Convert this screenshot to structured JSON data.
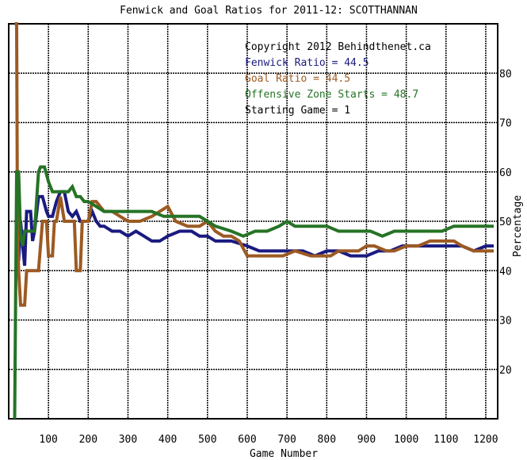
{
  "chart_data": {
    "type": "line",
    "title": "Fenwick and Goal Ratios for 2011-12: SCOTTHANNAN",
    "xlabel": "Game Number",
    "ylabel": "Percentage",
    "xlim": [
      0,
      1230
    ],
    "ylim": [
      10,
      90
    ],
    "x_ticks": [
      "100",
      "200",
      "300",
      "400",
      "500",
      "600",
      "700",
      "800",
      "900",
      "1000",
      "1100",
      "1200"
    ],
    "y_ticks": [
      "20",
      "30",
      "40",
      "50",
      "60",
      "70",
      "80"
    ],
    "grid": true,
    "annotations": [
      {
        "text": "Copyright 2012 Behindthenet.ca",
        "color": "#000000"
      },
      {
        "text": "Fenwick Ratio = 44.5",
        "color": "#1a1a80"
      },
      {
        "text": "Goal Ratio = 44.5",
        "color": "#9c5a22"
      },
      {
        "text": "Offensive Zone Starts = 48.7",
        "color": "#267326"
      },
      {
        "text": "Starting Game = 1",
        "color": "#000000"
      }
    ],
    "series": [
      {
        "name": "Fenwick Ratio",
        "color": "#1a1a80",
        "points": [
          [
            25,
            42
          ],
          [
            30,
            50
          ],
          [
            35,
            45
          ],
          [
            40,
            41
          ],
          [
            45,
            52
          ],
          [
            55,
            52
          ],
          [
            60,
            46
          ],
          [
            65,
            48
          ],
          [
            75,
            55
          ],
          [
            85,
            55
          ],
          [
            95,
            52
          ],
          [
            100,
            51
          ],
          [
            110,
            51
          ],
          [
            120,
            54
          ],
          [
            130,
            56
          ],
          [
            140,
            56
          ],
          [
            150,
            52
          ],
          [
            160,
            51
          ],
          [
            170,
            52
          ],
          [
            180,
            50
          ],
          [
            190,
            50
          ],
          [
            200,
            50
          ],
          [
            210,
            52
          ],
          [
            220,
            50
          ],
          [
            230,
            49
          ],
          [
            240,
            49
          ],
          [
            260,
            48
          ],
          [
            280,
            48
          ],
          [
            300,
            47
          ],
          [
            320,
            48
          ],
          [
            340,
            47
          ],
          [
            360,
            46
          ],
          [
            380,
            46
          ],
          [
            400,
            47
          ],
          [
            430,
            48
          ],
          [
            460,
            48
          ],
          [
            480,
            47
          ],
          [
            500,
            47
          ],
          [
            520,
            46
          ],
          [
            560,
            46
          ],
          [
            600,
            45
          ],
          [
            630,
            44
          ],
          [
            660,
            44
          ],
          [
            700,
            44
          ],
          [
            740,
            44
          ],
          [
            770,
            43
          ],
          [
            800,
            44
          ],
          [
            830,
            44
          ],
          [
            860,
            43
          ],
          [
            880,
            43
          ],
          [
            900,
            43
          ],
          [
            930,
            44
          ],
          [
            960,
            44
          ],
          [
            990,
            45
          ],
          [
            1020,
            45
          ],
          [
            1060,
            45
          ],
          [
            1100,
            45
          ],
          [
            1140,
            45
          ],
          [
            1170,
            44
          ],
          [
            1200,
            45
          ],
          [
            1220,
            45
          ]
        ]
      },
      {
        "name": "Goal Ratio",
        "color": "#9c5a22",
        "points": [
          [
            15,
            90
          ],
          [
            20,
            90
          ],
          [
            22,
            50
          ],
          [
            25,
            40
          ],
          [
            30,
            33
          ],
          [
            40,
            33
          ],
          [
            45,
            40
          ],
          [
            55,
            40
          ],
          [
            65,
            40
          ],
          [
            75,
            40
          ],
          [
            85,
            50
          ],
          [
            95,
            50
          ],
          [
            100,
            43
          ],
          [
            110,
            43
          ],
          [
            115,
            50
          ],
          [
            120,
            50
          ],
          [
            130,
            55
          ],
          [
            140,
            50
          ],
          [
            150,
            50
          ],
          [
            160,
            50
          ],
          [
            165,
            50
          ],
          [
            170,
            40
          ],
          [
            180,
            40
          ],
          [
            185,
            50
          ],
          [
            200,
            50
          ],
          [
            210,
            54
          ],
          [
            220,
            54
          ],
          [
            240,
            52
          ],
          [
            260,
            52
          ],
          [
            280,
            51
          ],
          [
            300,
            50
          ],
          [
            330,
            50
          ],
          [
            360,
            51
          ],
          [
            380,
            52
          ],
          [
            400,
            53
          ],
          [
            420,
            50
          ],
          [
            450,
            49
          ],
          [
            480,
            49
          ],
          [
            500,
            50
          ],
          [
            520,
            48
          ],
          [
            540,
            47
          ],
          [
            560,
            47
          ],
          [
            580,
            46
          ],
          [
            600,
            43
          ],
          [
            620,
            43
          ],
          [
            650,
            43
          ],
          [
            690,
            43
          ],
          [
            720,
            44
          ],
          [
            760,
            43
          ],
          [
            790,
            43
          ],
          [
            810,
            43
          ],
          [
            830,
            44
          ],
          [
            860,
            44
          ],
          [
            880,
            44
          ],
          [
            900,
            45
          ],
          [
            920,
            45
          ],
          [
            950,
            44
          ],
          [
            970,
            44
          ],
          [
            1000,
            45
          ],
          [
            1030,
            45
          ],
          [
            1060,
            46
          ],
          [
            1090,
            46
          ],
          [
            1120,
            46
          ],
          [
            1140,
            45
          ],
          [
            1170,
            44
          ],
          [
            1200,
            44
          ],
          [
            1220,
            44
          ]
        ]
      },
      {
        "name": "Offensive Zone Starts",
        "color": "#267326",
        "points": [
          [
            15,
            10
          ],
          [
            20,
            60
          ],
          [
            25,
            60
          ],
          [
            30,
            47
          ],
          [
            35,
            45
          ],
          [
            40,
            48
          ],
          [
            55,
            48
          ],
          [
            65,
            48
          ],
          [
            75,
            60
          ],
          [
            80,
            61
          ],
          [
            90,
            61
          ],
          [
            100,
            58
          ],
          [
            110,
            56
          ],
          [
            120,
            56
          ],
          [
            130,
            56
          ],
          [
            140,
            56
          ],
          [
            150,
            56
          ],
          [
            160,
            57
          ],
          [
            170,
            55
          ],
          [
            180,
            55
          ],
          [
            190,
            54
          ],
          [
            200,
            54
          ],
          [
            220,
            53
          ],
          [
            240,
            52
          ],
          [
            260,
            52
          ],
          [
            290,
            52
          ],
          [
            310,
            52
          ],
          [
            330,
            52
          ],
          [
            360,
            52
          ],
          [
            390,
            51
          ],
          [
            420,
            51
          ],
          [
            450,
            51
          ],
          [
            480,
            51
          ],
          [
            500,
            50
          ],
          [
            520,
            49
          ],
          [
            560,
            48
          ],
          [
            590,
            47
          ],
          [
            620,
            48
          ],
          [
            650,
            48
          ],
          [
            680,
            49
          ],
          [
            700,
            50
          ],
          [
            720,
            49
          ],
          [
            750,
            49
          ],
          [
            780,
            49
          ],
          [
            800,
            49
          ],
          [
            830,
            48
          ],
          [
            860,
            48
          ],
          [
            880,
            48
          ],
          [
            910,
            48
          ],
          [
            940,
            47
          ],
          [
            970,
            48
          ],
          [
            1000,
            48
          ],
          [
            1030,
            48
          ],
          [
            1060,
            48
          ],
          [
            1090,
            48
          ],
          [
            1120,
            49
          ],
          [
            1150,
            49
          ],
          [
            1180,
            49
          ],
          [
            1200,
            49
          ],
          [
            1220,
            49
          ]
        ]
      }
    ]
  }
}
